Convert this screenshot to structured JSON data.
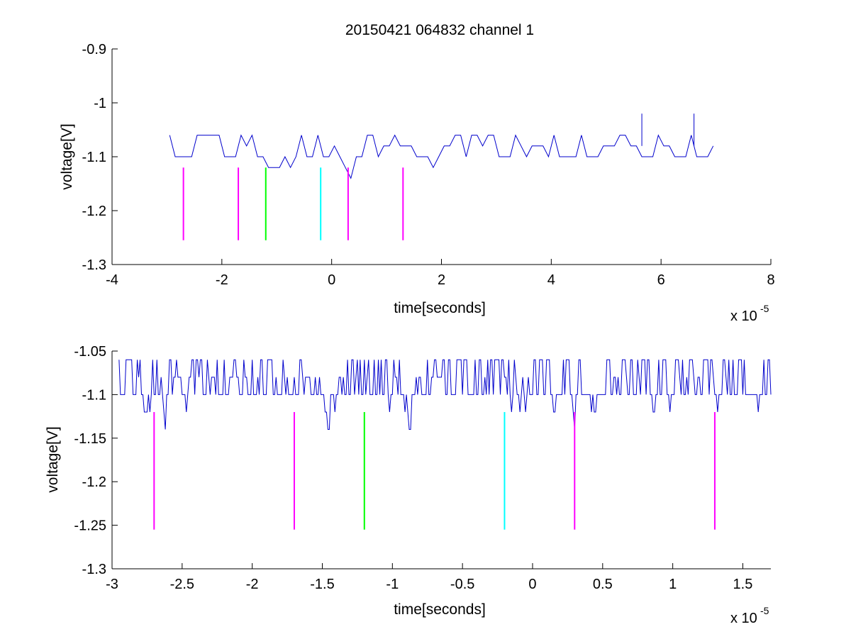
{
  "chart_data": [
    {
      "type": "line",
      "title": "20150421 064832 channel 1",
      "xlabel": "time[seconds]",
      "ylabel": "voltage[V]",
      "x_exponent_label": "x 10",
      "x_exponent_power": "-5",
      "xlim": [
        -4,
        8
      ],
      "ylim": [
        -1.3,
        -0.9
      ],
      "xticks": [
        "-4",
        "-2",
        "0",
        "2",
        "4",
        "6",
        "8"
      ],
      "xtick_values": [
        -4,
        -2,
        0,
        2,
        4,
        6,
        8
      ],
      "yticks": [
        "-0.9",
        "-1",
        "-1.1",
        "-1.2",
        "-1.3"
      ],
      "ytick_values": [
        -0.9,
        -1.0,
        -1.1,
        -1.2,
        -1.3
      ],
      "grid": false,
      "signal": {
        "color": "#0000cc",
        "x_range": [
          -2.95,
          7.0
        ],
        "sample_step": 0.1,
        "levels": [
          -1.14,
          -1.12,
          -1.1,
          -1.08,
          -1.06
        ],
        "spikes": [
          {
            "x": 5.65,
            "y": -1.02
          },
          {
            "x": 6.6,
            "y": -1.02
          }
        ]
      },
      "markers": [
        {
          "x": -2.7,
          "y_top": -1.12,
          "y_bottom": -1.255,
          "color": "#ff00ff"
        },
        {
          "x": -1.7,
          "y_top": -1.12,
          "y_bottom": -1.255,
          "color": "#ff00ff"
        },
        {
          "x": -1.2,
          "y_top": -1.12,
          "y_bottom": -1.255,
          "color": "#00ff00"
        },
        {
          "x": -0.2,
          "y_top": -1.12,
          "y_bottom": -1.255,
          "color": "#00ffff"
        },
        {
          "x": 0.3,
          "y_top": -1.12,
          "y_bottom": -1.255,
          "color": "#ff00ff"
        },
        {
          "x": 1.3,
          "y_top": -1.12,
          "y_bottom": -1.255,
          "color": "#ff00ff"
        }
      ]
    },
    {
      "type": "line",
      "title": "",
      "xlabel": "time[seconds]",
      "ylabel": "voltage[V]",
      "x_exponent_label": "x 10",
      "x_exponent_power": "-5",
      "xlim": [
        -3.0,
        1.7
      ],
      "ylim": [
        -1.3,
        -1.05
      ],
      "xticks": [
        "-3",
        "-2.5",
        "-2",
        "-1.5",
        "-1",
        "-0.5",
        "0",
        "0.5",
        "1",
        "1.5"
      ],
      "xtick_values": [
        -3,
        -2.5,
        -2,
        -1.5,
        -1,
        -0.5,
        0,
        0.5,
        1,
        1.5
      ],
      "yticks": [
        "-1.05",
        "-1.1",
        "-1.15",
        "-1.2",
        "-1.25",
        "-1.3"
      ],
      "ytick_values": [
        -1.05,
        -1.1,
        -1.15,
        -1.2,
        -1.25,
        -1.3
      ],
      "grid": false,
      "signal": {
        "color": "#0000cc",
        "x_range": [
          -2.95,
          1.7
        ],
        "sample_step": 0.01,
        "levels": [
          -1.14,
          -1.12,
          -1.1,
          -1.08,
          -1.06
        ],
        "spikes": []
      },
      "markers": [
        {
          "x": -2.7,
          "y_top": -1.12,
          "y_bottom": -1.255,
          "color": "#ff00ff"
        },
        {
          "x": -1.7,
          "y_top": -1.12,
          "y_bottom": -1.255,
          "color": "#ff00ff"
        },
        {
          "x": -1.2,
          "y_top": -1.12,
          "y_bottom": -1.255,
          "color": "#00ff00"
        },
        {
          "x": -0.2,
          "y_top": -1.12,
          "y_bottom": -1.255,
          "color": "#00ffff"
        },
        {
          "x": 0.3,
          "y_top": -1.12,
          "y_bottom": -1.255,
          "color": "#ff00ff"
        },
        {
          "x": 1.3,
          "y_top": -1.12,
          "y_bottom": -1.255,
          "color": "#ff00ff"
        }
      ]
    }
  ]
}
